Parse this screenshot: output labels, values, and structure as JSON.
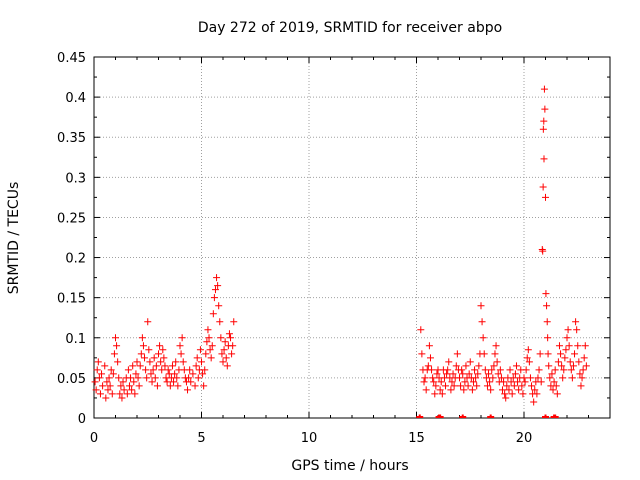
{
  "chart_data": {
    "type": "scatter",
    "title": "Day 272 of 2019, SRMTID for receiver abpo",
    "xlabel": "GPS time / hours",
    "ylabel": "SRMTID / TECUs",
    "xlim": [
      0,
      24
    ],
    "ylim": [
      0,
      0.45
    ],
    "xticks": [
      0,
      5,
      10,
      15,
      20
    ],
    "yticks": [
      0,
      0.05,
      0.1,
      0.15,
      0.2,
      0.25,
      0.3,
      0.35,
      0.4,
      0.45
    ],
    "xtick_labels": [
      "0",
      "5",
      "10",
      "15",
      "20"
    ],
    "ytick_labels": [
      "0",
      "0.05",
      "0.1",
      "0.15",
      "0.2",
      "0.25",
      "0.3",
      "0.35",
      "0.4",
      "0.45"
    ],
    "grid": true,
    "marker": "+",
    "color": "#ff0000",
    "series": [
      {
        "name": "SRMTID",
        "points": [
          [
            0.05,
            0.045
          ],
          [
            0.1,
            0.035
          ],
          [
            0.15,
            0.06
          ],
          [
            0.2,
            0.07
          ],
          [
            0.25,
            0.05
          ],
          [
            0.3,
            0.03
          ],
          [
            0.35,
            0.055
          ],
          [
            0.4,
            0.04
          ],
          [
            0.5,
            0.065
          ],
          [
            0.55,
            0.025
          ],
          [
            0.6,
            0.045
          ],
          [
            0.65,
            0.035
          ],
          [
            0.7,
            0.05
          ],
          [
            0.75,
            0.04
          ],
          [
            0.8,
            0.06
          ],
          [
            0.85,
            0.03
          ],
          [
            0.9,
            0.055
          ],
          [
            0.95,
            0.08
          ],
          [
            1.0,
            0.1
          ],
          [
            1.05,
            0.09
          ],
          [
            1.1,
            0.07
          ],
          [
            1.15,
            0.05
          ],
          [
            1.2,
            0.03
          ],
          [
            1.25,
            0.04
          ],
          [
            1.3,
            0.025
          ],
          [
            1.35,
            0.045
          ],
          [
            1.4,
            0.035
          ],
          [
            1.5,
            0.05
          ],
          [
            1.55,
            0.03
          ],
          [
            1.6,
            0.06
          ],
          [
            1.65,
            0.04
          ],
          [
            1.7,
            0.05
          ],
          [
            1.75,
            0.035
          ],
          [
            1.8,
            0.065
          ],
          [
            1.85,
            0.045
          ],
          [
            1.9,
            0.03
          ],
          [
            1.95,
            0.055
          ],
          [
            2.0,
            0.07
          ],
          [
            2.05,
            0.05
          ],
          [
            2.1,
            0.04
          ],
          [
            2.15,
            0.065
          ],
          [
            2.2,
            0.08
          ],
          [
            2.25,
            0.1
          ],
          [
            2.3,
            0.09
          ],
          [
            2.35,
            0.075
          ],
          [
            2.4,
            0.06
          ],
          [
            2.45,
            0.05
          ],
          [
            2.5,
            0.12
          ],
          [
            2.55,
            0.085
          ],
          [
            2.6,
            0.07
          ],
          [
            2.65,
            0.055
          ],
          [
            2.7,
            0.045
          ],
          [
            2.75,
            0.06
          ],
          [
            2.8,
            0.075
          ],
          [
            2.85,
            0.05
          ],
          [
            2.9,
            0.065
          ],
          [
            2.95,
            0.04
          ],
          [
            3.0,
            0.08
          ],
          [
            3.05,
            0.09
          ],
          [
            3.1,
            0.07
          ],
          [
            3.15,
            0.06
          ],
          [
            3.2,
            0.085
          ],
          [
            3.25,
            0.075
          ],
          [
            3.3,
            0.065
          ],
          [
            3.35,
            0.05
          ],
          [
            3.4,
            0.045
          ],
          [
            3.45,
            0.06
          ],
          [
            3.5,
            0.055
          ],
          [
            3.55,
            0.04
          ],
          [
            3.6,
            0.05
          ],
          [
            3.65,
            0.065
          ],
          [
            3.7,
            0.045
          ],
          [
            3.75,
            0.055
          ],
          [
            3.8,
            0.07
          ],
          [
            3.85,
            0.05
          ],
          [
            3.9,
            0.04
          ],
          [
            3.95,
            0.06
          ],
          [
            4.0,
            0.09
          ],
          [
            4.05,
            0.08
          ],
          [
            4.1,
            0.1
          ],
          [
            4.15,
            0.07
          ],
          [
            4.2,
            0.06
          ],
          [
            4.25,
            0.05
          ],
          [
            4.3,
            0.045
          ],
          [
            4.35,
            0.035
          ],
          [
            4.4,
            0.05
          ],
          [
            4.45,
            0.06
          ],
          [
            4.5,
            0.045
          ],
          [
            4.6,
            0.055
          ],
          [
            4.7,
            0.04
          ],
          [
            4.75,
            0.065
          ],
          [
            4.8,
            0.075
          ],
          [
            4.85,
            0.05
          ],
          [
            4.9,
            0.06
          ],
          [
            4.95,
            0.085
          ],
          [
            5.0,
            0.07
          ],
          [
            5.05,
            0.055
          ],
          [
            5.1,
            0.04
          ],
          [
            5.15,
            0.06
          ],
          [
            5.2,
            0.08
          ],
          [
            5.25,
            0.095
          ],
          [
            5.3,
            0.11
          ],
          [
            5.35,
            0.1
          ],
          [
            5.4,
            0.085
          ],
          [
            5.45,
            0.075
          ],
          [
            5.5,
            0.09
          ],
          [
            5.55,
            0.13
          ],
          [
            5.6,
            0.15
          ],
          [
            5.65,
            0.16
          ],
          [
            5.7,
            0.175
          ],
          [
            5.75,
            0.165
          ],
          [
            5.8,
            0.14
          ],
          [
            5.85,
            0.12
          ],
          [
            5.9,
            0.1
          ],
          [
            5.95,
            0.08
          ],
          [
            6.0,
            0.07
          ],
          [
            6.05,
            0.085
          ],
          [
            6.1,
            0.095
          ],
          [
            6.15,
            0.075
          ],
          [
            6.2,
            0.065
          ],
          [
            6.25,
            0.09
          ],
          [
            6.3,
            0.105
          ],
          [
            6.35,
            0.1
          ],
          [
            6.4,
            0.08
          ],
          [
            6.45,
            0.09
          ],
          [
            6.5,
            0.12
          ],
          [
            15.2,
            0.11
          ],
          [
            15.25,
            0.08
          ],
          [
            15.3,
            0.06
          ],
          [
            15.35,
            0.045
          ],
          [
            15.4,
            0.05
          ],
          [
            15.45,
            0.035
          ],
          [
            15.5,
            0.06
          ],
          [
            15.55,
            0.065
          ],
          [
            15.6,
            0.09
          ],
          [
            15.65,
            0.075
          ],
          [
            15.7,
            0.06
          ],
          [
            15.75,
            0.05
          ],
          [
            15.8,
            0.045
          ],
          [
            15.85,
            0.03
          ],
          [
            15.9,
            0.04
          ],
          [
            15.95,
            0.055
          ],
          [
            16.0,
            0.06
          ],
          [
            16.05,
            0.05
          ],
          [
            16.1,
            0.035
          ],
          [
            16.15,
            0.045
          ],
          [
            16.2,
            0.03
          ],
          [
            16.25,
            0.06
          ],
          [
            16.3,
            0.05
          ],
          [
            16.35,
            0.04
          ],
          [
            16.4,
            0.055
          ],
          [
            16.45,
            0.06
          ],
          [
            16.5,
            0.07
          ],
          [
            16.55,
            0.05
          ],
          [
            16.6,
            0.035
          ],
          [
            16.65,
            0.045
          ],
          [
            16.7,
            0.055
          ],
          [
            16.75,
            0.04
          ],
          [
            16.8,
            0.05
          ],
          [
            16.85,
            0.065
          ],
          [
            16.9,
            0.08
          ],
          [
            16.95,
            0.06
          ],
          [
            17.0,
            0.05
          ],
          [
            17.05,
            0.04
          ],
          [
            17.1,
            0.06
          ],
          [
            17.15,
            0.055
          ],
          [
            17.2,
            0.035
          ],
          [
            17.25,
            0.045
          ],
          [
            17.3,
            0.065
          ],
          [
            17.35,
            0.05
          ],
          [
            17.4,
            0.04
          ],
          [
            17.45,
            0.055
          ],
          [
            17.5,
            0.07
          ],
          [
            17.55,
            0.05
          ],
          [
            17.6,
            0.035
          ],
          [
            17.65,
            0.045
          ],
          [
            17.7,
            0.06
          ],
          [
            17.75,
            0.05
          ],
          [
            17.8,
            0.04
          ],
          [
            17.85,
            0.055
          ],
          [
            17.9,
            0.065
          ],
          [
            17.95,
            0.08
          ],
          [
            18.0,
            0.14
          ],
          [
            18.05,
            0.12
          ],
          [
            18.1,
            0.1
          ],
          [
            18.15,
            0.08
          ],
          [
            18.2,
            0.06
          ],
          [
            18.25,
            0.05
          ],
          [
            18.3,
            0.04
          ],
          [
            18.35,
            0.055
          ],
          [
            18.4,
            0.045
          ],
          [
            18.45,
            0.035
          ],
          [
            18.5,
            0.06
          ],
          [
            18.55,
            0.05
          ],
          [
            18.6,
            0.065
          ],
          [
            18.65,
            0.08
          ],
          [
            18.7,
            0.09
          ],
          [
            18.75,
            0.07
          ],
          [
            18.8,
            0.055
          ],
          [
            18.85,
            0.045
          ],
          [
            18.9,
            0.06
          ],
          [
            18.95,
            0.05
          ],
          [
            19.0,
            0.035
          ],
          [
            19.05,
            0.045
          ],
          [
            19.1,
            0.03
          ],
          [
            19.15,
            0.025
          ],
          [
            19.2,
            0.04
          ],
          [
            19.25,
            0.05
          ],
          [
            19.3,
            0.035
          ],
          [
            19.35,
            0.06
          ],
          [
            19.4,
            0.045
          ],
          [
            19.45,
            0.03
          ],
          [
            19.5,
            0.05
          ],
          [
            19.55,
            0.04
          ],
          [
            19.6,
            0.055
          ],
          [
            19.65,
            0.065
          ],
          [
            19.7,
            0.045
          ],
          [
            19.75,
            0.035
          ],
          [
            19.8,
            0.05
          ],
          [
            19.85,
            0.06
          ],
          [
            19.9,
            0.04
          ],
          [
            19.95,
            0.03
          ],
          [
            20.0,
            0.05
          ],
          [
            20.05,
            0.045
          ],
          [
            20.1,
            0.06
          ],
          [
            20.15,
            0.075
          ],
          [
            20.2,
            0.085
          ],
          [
            20.25,
            0.07
          ],
          [
            20.3,
            0.05
          ],
          [
            20.35,
            0.04
          ],
          [
            20.4,
            0.03
          ],
          [
            20.45,
            0.02
          ],
          [
            20.5,
            0.035
          ],
          [
            20.55,
            0.045
          ],
          [
            20.6,
            0.03
          ],
          [
            20.65,
            0.05
          ],
          [
            20.7,
            0.06
          ],
          [
            20.75,
            0.08
          ],
          [
            20.8,
            0.045
          ],
          [
            20.85,
            0.21
          ],
          [
            20.87,
            0.208
          ],
          [
            20.9,
            0.36
          ],
          [
            20.92,
            0.37
          ],
          [
            20.95,
            0.41
          ],
          [
            20.97,
            0.385
          ],
          [
            21.0,
            0.275
          ],
          [
            20.89,
            0.288
          ],
          [
            20.93,
            0.323
          ],
          [
            21.02,
            0.155
          ],
          [
            21.05,
            0.14
          ],
          [
            21.08,
            0.12
          ],
          [
            21.1,
            0.1
          ],
          [
            21.12,
            0.08
          ],
          [
            21.15,
            0.065
          ],
          [
            21.2,
            0.05
          ],
          [
            21.25,
            0.04
          ],
          [
            21.3,
            0.055
          ],
          [
            21.35,
            0.035
          ],
          [
            21.4,
            0.045
          ],
          [
            21.45,
            0.06
          ],
          [
            21.5,
            0.04
          ],
          [
            21.55,
            0.03
          ],
          [
            21.6,
            0.07
          ],
          [
            21.65,
            0.09
          ],
          [
            21.7,
            0.08
          ],
          [
            21.75,
            0.065
          ],
          [
            21.8,
            0.05
          ],
          [
            21.85,
            0.06
          ],
          [
            21.9,
            0.075
          ],
          [
            21.95,
            0.085
          ],
          [
            22.0,
            0.1
          ],
          [
            22.05,
            0.11
          ],
          [
            22.1,
            0.09
          ],
          [
            22.15,
            0.07
          ],
          [
            22.2,
            0.06
          ],
          [
            22.25,
            0.05
          ],
          [
            22.3,
            0.065
          ],
          [
            22.35,
            0.08
          ],
          [
            22.4,
            0.12
          ],
          [
            22.45,
            0.11
          ],
          [
            22.5,
            0.09
          ],
          [
            22.55,
            0.07
          ],
          [
            22.6,
            0.055
          ],
          [
            22.65,
            0.04
          ],
          [
            22.7,
            0.05
          ],
          [
            22.75,
            0.06
          ],
          [
            22.8,
            0.075
          ],
          [
            22.85,
            0.09
          ],
          [
            22.9,
            0.065
          ]
        ]
      }
    ],
    "zero_markers_x": [
      15.15,
      16.05,
      16.1,
      17.15,
      18.45,
      21.0,
      21.4,
      21.45
    ]
  }
}
